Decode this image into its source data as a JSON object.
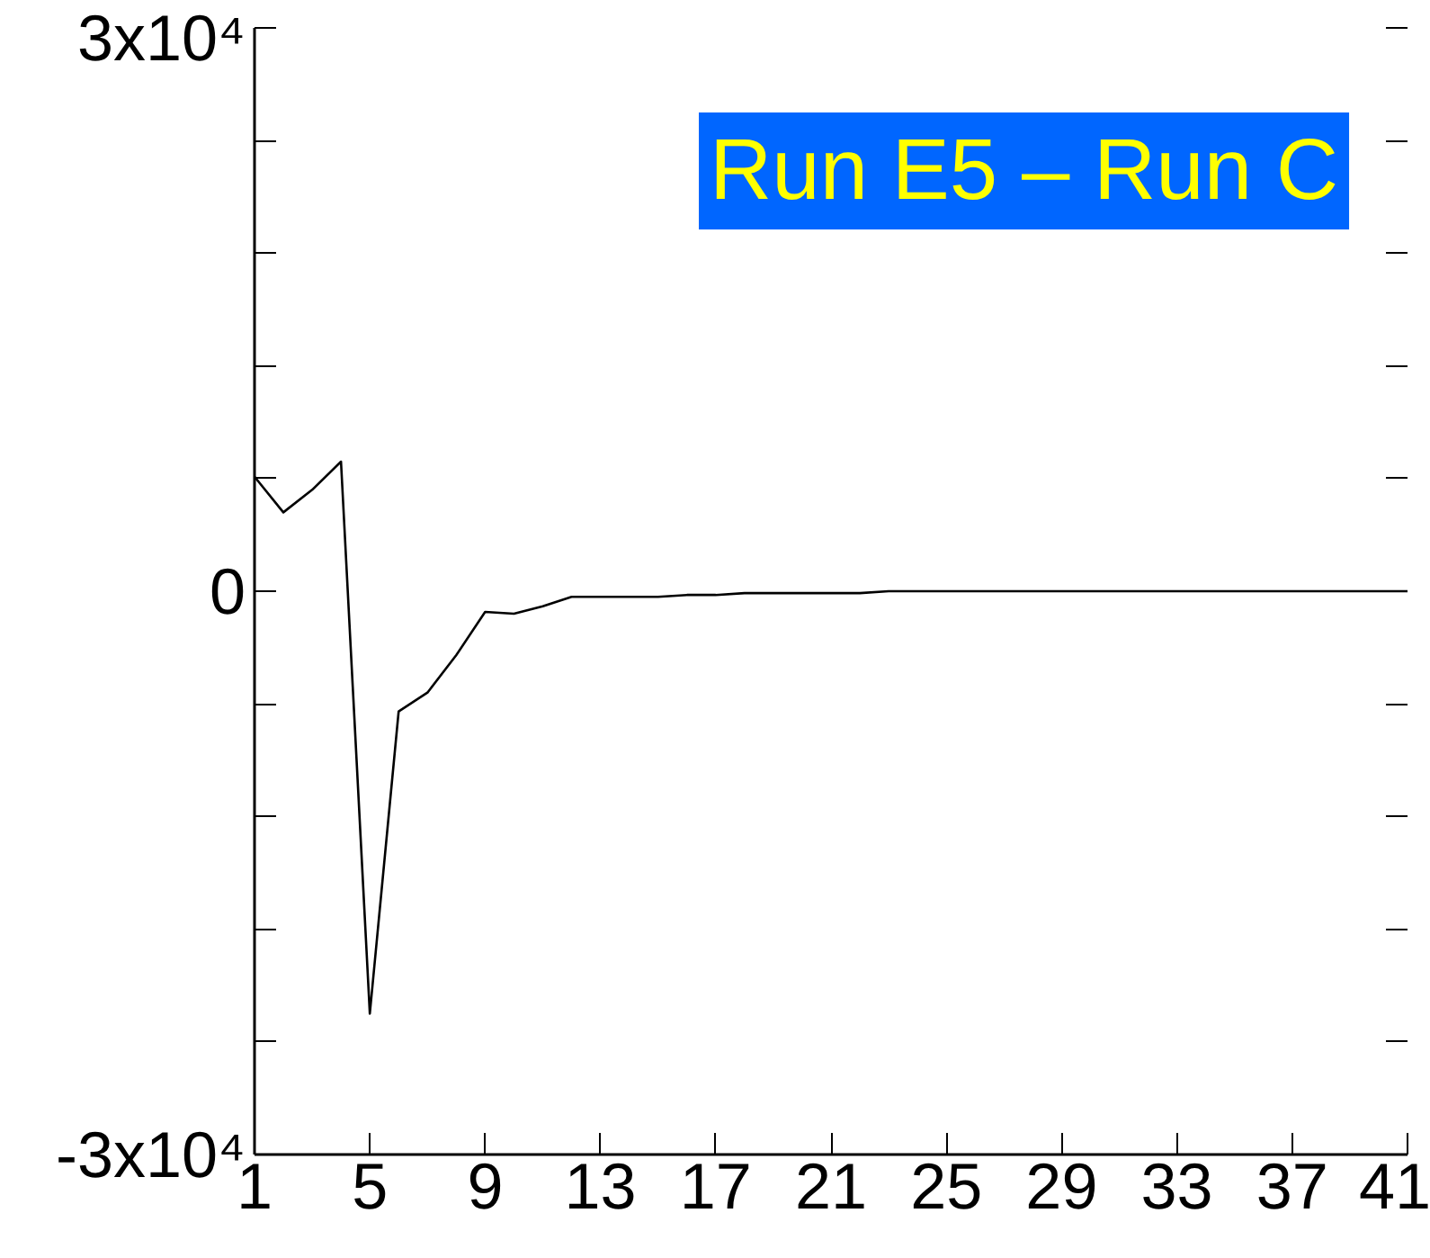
{
  "chart_data": {
    "type": "line",
    "x": [
      1,
      2,
      3,
      4,
      5,
      6,
      7,
      8,
      9,
      10,
      11,
      12,
      13,
      14,
      15,
      16,
      17,
      18,
      19,
      20,
      21,
      22,
      23,
      24,
      25,
      26,
      27,
      28,
      29,
      30,
      31,
      32,
      33,
      34,
      35,
      36,
      37,
      38,
      39,
      40,
      41
    ],
    "series": [
      {
        "color": "#000000",
        "values": [
          6100,
          4200,
          5400,
          6900,
          -22500,
          -6400,
          -5400,
          -3400,
          -1100,
          -1200,
          -800,
          -300,
          -300,
          -300,
          -300,
          -200,
          -200,
          -100,
          -100,
          -100,
          -100,
          -100,
          0,
          0,
          0,
          0,
          0,
          0,
          0,
          0,
          0,
          0,
          0,
          0,
          0,
          0,
          0,
          0,
          0,
          0,
          0
        ]
      }
    ],
    "xlim": [
      1,
      41
    ],
    "xticks": [
      1,
      5,
      9,
      13,
      17,
      21,
      25,
      29,
      33,
      37,
      41
    ],
    "ylim": [
      -30000,
      30000
    ],
    "yticks": [
      {
        "value": 30000,
        "label": "3x10⁴"
      },
      {
        "value": 24000,
        "label": null
      },
      {
        "value": 18000,
        "label": null
      },
      {
        "value": 12000,
        "label": null
      },
      {
        "value": 6000,
        "label": null
      },
      0,
      {
        "value": -6000,
        "label": null
      },
      {
        "value": -12000,
        "label": null
      },
      {
        "value": -18000,
        "label": null
      },
      {
        "value": -24000,
        "label": null
      },
      {
        "value": -30000,
        "label": "-3x10⁴"
      }
    ],
    "annotations": [
      "Run E5 – Run C"
    ],
    "grid": false,
    "marker": "none",
    "line_style": "solid"
  }
}
